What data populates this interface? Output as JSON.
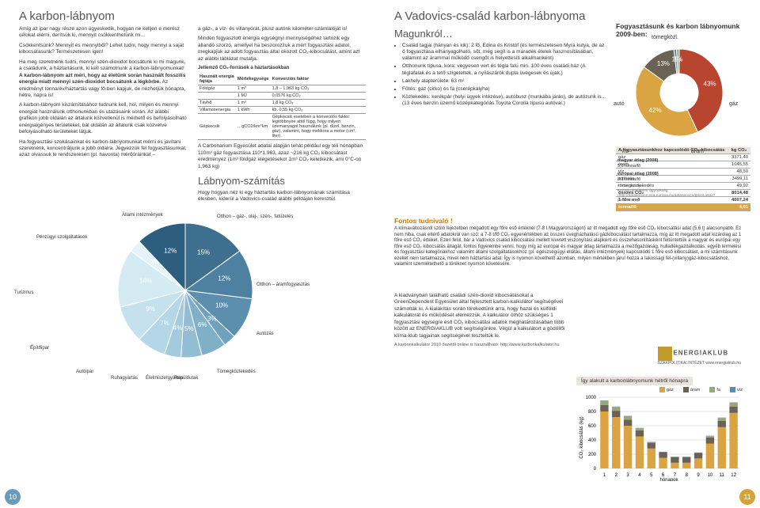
{
  "left": {
    "title": "A karbon-lábnyom",
    "intro": "Amíg az ipar nagy része azon ügyeskedik, hogyan ne kelljen e merész célokat elérni, derítsük ki, mennyit csökkenthetünk mi…",
    "q1": "Csökkentsünk? Mennyit és mennyiből? Lehet tudni, hogy mennyi a saját kibocsátásunk? Természetesen igen!",
    "p1": "Ha meg szeretnénk tudni, mennyi szén-dioxidot bocsátunk ki mi magunk, a családunk, a háztartásunk, ki kell számolnunk a karbon-lábnyomunkat!",
    "p1b": "A karbon-lábnyom azt méri, hogy az életünk során használt fosszilis energia miatt mennyi szén-dioxidot bocsátunk a légkörbe.",
    "p1c": " Az eredményt tonna/év/háztartás vagy fő-ben kapjuk, de nézhetjük hónapra, hétre, napra is!",
    "p2": "A karbon-lábnyom kiszámításához tudnunk kell, hol, milyen és mennyi energiát használunk otthonunkban és utazásaink során. Az alábbi grafikon jobb oldalán az általunk közvetlenül is mérhető és befolyásolható energiaigényes területeket, bal oldalán az általunk csak közvetve befolyásolható területeket látjuk.",
    "p3": "Ha fogyasztási szokásainkat és karbon-lábnyomunkat mérni és javítani szeretnénk, koncentráljunk a jobb oldalra. Jegyezzük fel fogyasztásunkat, azaz olvassuk le rendszeresen (pl. havonta) mérőóráinkat –",
    "col2top": "a gáz-, a víz- és villanyórát, plusz autónk kilométer-számlálóját is!",
    "col2p1": "Minden fogyasztott energia egységnyi mennyiségéhez tartozik egy állandó szorzó, amellyel ha beszorozzuk a mért fogyasztási adatot, megkapjuk az adott fogyasztás által okozott CO₂-kibocsátást, amint azt az alábbi táblázat mutatja.",
    "conv_caption": "Jellemző CO₂-források a háztartásokban",
    "conv_headers": [
      "Használt energia fajtája",
      "Mértékegysége",
      "Konverziós faktor"
    ],
    "conv_rows": [
      [
        "Földgáz",
        "1 m³",
        "1,8 – 1,963 kg CO₂"
      ],
      [
        "",
        "1 MJ",
        "0,0576 kg CO₂"
      ],
      [
        "Távhő",
        "1 m³",
        "1,8 kg CO₂"
      ],
      [
        "Villamosenergia",
        "1 kWh",
        "kb. 0,55 kg CO₂"
      ],
      [
        "Gépkocsik",
        "…gCO2/km*km",
        "Gépkocsik esetében a konverziós faktor legtöbbnyire attól függ, hogy milyen üzemanyagot használunk (pl. dízel, benzin, gáz), valamint, hogy mekkora a motor (cm³, liter)."
      ]
    ],
    "col2p2": "A Carbonarium Egyesület adatai alapján tehát például egy téli hónapban 110m³ gáz fogyasztása 110*1,963, azaz ~216 kg CO₂ kibocsátást eredményez (1m³ földgáz elégetésekor 1m³ CO₂ keletkezik, ami 0°C-on 1,963 kg)",
    "h2": "Lábnyom-számítás",
    "col2p3": "Hogy hogyan néz ki egy háztartás karbon-lábnyomának számítása élesben, kiderül a Vadovics-család alábbi példáján keresztül.",
    "pie": {
      "type": "pie",
      "background": "#ffffff",
      "slices": [
        {
          "label": "Otthon – gáz-, olaj-, szén-, fatüzelés",
          "value": 15,
          "color": "#3e6f8f"
        },
        {
          "label": "Otthon – áramfogyasztás",
          "value": 12,
          "color": "#4d80a1"
        },
        {
          "label": "Autózás",
          "value": 10,
          "color": "#5c8fae"
        },
        {
          "label": "Tömegközlekedés",
          "value": 3,
          "color": "#6fa1bd"
        },
        {
          "label": "Repülőutak",
          "value": 6,
          "color": "#80afc8"
        },
        {
          "label": "Élelmiszergyártás",
          "value": 5,
          "color": "#92bdd3"
        },
        {
          "label": "Ruhagyártás",
          "value": 4,
          "color": "#a3cadd"
        },
        {
          "label": "Autóipar",
          "value": 7,
          "color": "#b4d6e6"
        },
        {
          "label": "Építőipar",
          "value": 9,
          "color": "#c5e1ee"
        },
        {
          "label": "Turizmus",
          "value": 14,
          "color": "#d5ebf4"
        },
        {
          "label": "Pénzügyi szolgáltatások",
          "value": 3,
          "color": "#e4f3f9"
        },
        {
          "label": "Állami intézmények",
          "value": 12,
          "color": "#2d5e7d"
        }
      ]
    }
  },
  "right": {
    "title": "A Vadovics-család karbon-lábnyoma",
    "h_magunk": "Magunkról…",
    "bullets": [
      "Család tagjai (hányan és kik): 2 fő, Edina és Kristóf (és természetesen Myra kutya, de az ő fogyasztása elhanyagolható, sőt, még segít is a maradék ételek hasznosításában, valamint az árammal működő csengőt is helyettesíti alkalmanként)",
      "Otthonunk típusa, kora: vegyesen vert és tégla falú min. 100 éves családi ház (A téglafalak és a tető szigeteltek, a nyílászárók dupla üvegesek és újak.)",
      "Lakhely alapterülete: 63 m²",
      "Fűtés: gáz (cirko) és fa (cserépkályha)",
      "Közlekedés: kerékpár (helyi ügyek intézése), autóbusz (munkába járás), de autózunk is… (13 éves benzin üzemű középkategóriás Toyota Corolla típusú autóval.)"
    ],
    "donut_title": "Fogyasztásunk és karbon lábnyomunk 2009-ben:",
    "donut": {
      "type": "donut",
      "slices": [
        {
          "label": "autó",
          "value": 43,
          "color": "#b8452f"
        },
        {
          "label": "gáz",
          "value": 42,
          "color": "#d9a441"
        },
        {
          "label": "áram",
          "value": 13,
          "color": "#6b6256"
        },
        {
          "label": "víz",
          "value": 1,
          "color": "#5a8fa8"
        },
        {
          "label": "tömegközl.",
          "value": 1,
          "color": "#9aa77a"
        }
      ]
    },
    "stat_header": [
      "A fogyasztásunkhoz kapcsolódó CO₂-kibocsátás",
      "kg CO₂"
    ],
    "stat_rows": [
      [
        "gáz",
        "3371,40"
      ],
      [
        "áram",
        "1045,55"
      ],
      [
        "víz",
        "48,50"
      ],
      [
        "autózás",
        "3499,11"
      ],
      [
        "tömegközlekedés",
        "49,92"
      ],
      [
        "összes CO₂",
        "8014,48"
      ],
      [
        "1 főre eső",
        "4007,24"
      ],
      [
        "tonna/fő",
        "4,01"
      ]
    ],
    "stat_side1_title": "magyar átlag (2008)",
    "stat_side1": "5,6 tonna/fő",
    "stat_side2_title": "európai átlag (2008)",
    "stat_side2": "8,1 tonna/fő",
    "stat_source": "Forrás: Európai Környezetvédelmi Ügynökség (http://dataservice.eea.europa.eu/dataservice/tpivot.aspx?pivotid=475)",
    "fontos_h": "Fontos tudnivaló !",
    "fontos_p": "A klímaváltozásról szóló fejezetben megadott egy főre eső értéknél (7-8 t Magyarországon) az itt megadott egy főre eső CO₂ kibocsátási adat (5,6 t) alacsonyabb. Ez nem hiba, csak eltérő adatokról van szó: a 7-8 t/fő CO₂ egyenértékben az összes üvegházhatású gázkibocsátást tartalmazza, míg az itt megadott adat kizárólag az 1 főre eső CO₂ értéket. Ezen felül, bár a Vadovics család kibocsátási mellett kivetett viszonyítási alapként és összehasonlításként feltüntettük a magyar és európai egy főre eső CO₂ kibocsátás átlagát, fontos figyelembe venni, hogy míg az európai és magyar átlag tartalmazza a mezőgazdaság, hulladékgazdálkodás, egyéb termelési és fogyasztási kategóriákhoz valamint állami szolgáltatásokhoz (pl. egészségügyi ellátás, állami intézmények) kapcsolódó 1 főre eső kibocsátást, a mi számításunk ezeket nem tartalmazza, mivel nem háztartási adat. Így is nyomon követhető azonban, milyen mértékben járul hozzá a lakossági fel-(villany)gáz-kibocsátáshoz, valamint szemléltethető a töréknet nyomon követésére.",
    "right_block": "A kiadványban található családi szén-dioxid kibocsátásokat a GreenDependent Egyesület által fejlesztett karbon-kalkulátor segítségével számolták ki. A kialakítás során törekedtünk arra, hogy hazai és külföldi kalkulátorát és működését elemezzük. A kalkulátor öthöz szükséges 1 fogyasztási egységre eső CO₂ kibocsátási adatok meghatározásában több között az ENERGIAKLUB volt segítségünkre. Végül a kalkulátort a gödöllői klíma-klub tagjainak segítségével teszteltük le.",
    "kalkulator_note": "A karbonkalkulátor 2010 őszétől online is használható: http://www.karbonkalkulator.hu",
    "bar_title": "Így alakult a karbonlábnyomunk hétről hónapra",
    "bar": {
      "type": "stacked-bar",
      "ylabel": "CO₂ kibocsátás (kg)",
      "ylim": [
        0,
        1000
      ],
      "ytick": 200,
      "xlabel": "hónapok",
      "categories": [
        1,
        2,
        3,
        4,
        5,
        6,
        7,
        8,
        9,
        10,
        11,
        12
      ],
      "series": [
        {
          "name": "gáz",
          "color": "#d9a441",
          "values": [
            800,
            720,
            600,
            450,
            280,
            150,
            80,
            80,
            140,
            350,
            580,
            780
          ]
        },
        {
          "name": "áram",
          "color": "#6b6256",
          "values": [
            90,
            90,
            85,
            85,
            80,
            80,
            80,
            80,
            80,
            85,
            90,
            90
          ]
        },
        {
          "name": "fa",
          "color": "#9aa77a",
          "values": [
            60,
            55,
            50,
            30,
            10,
            0,
            0,
            0,
            0,
            20,
            40,
            55
          ]
        },
        {
          "name": "víz",
          "color": "#5a8fa8",
          "values": [
            4,
            4,
            4,
            4,
            4,
            4,
            4,
            4,
            4,
            4,
            4,
            4
          ]
        }
      ]
    },
    "logo_name": "ENERGIAKLUB",
    "logo_sub": "SZAKPOLITIKAI INTÉZET www.energiaklub.hu"
  },
  "page_left_num": "10",
  "page_right_num": "11"
}
